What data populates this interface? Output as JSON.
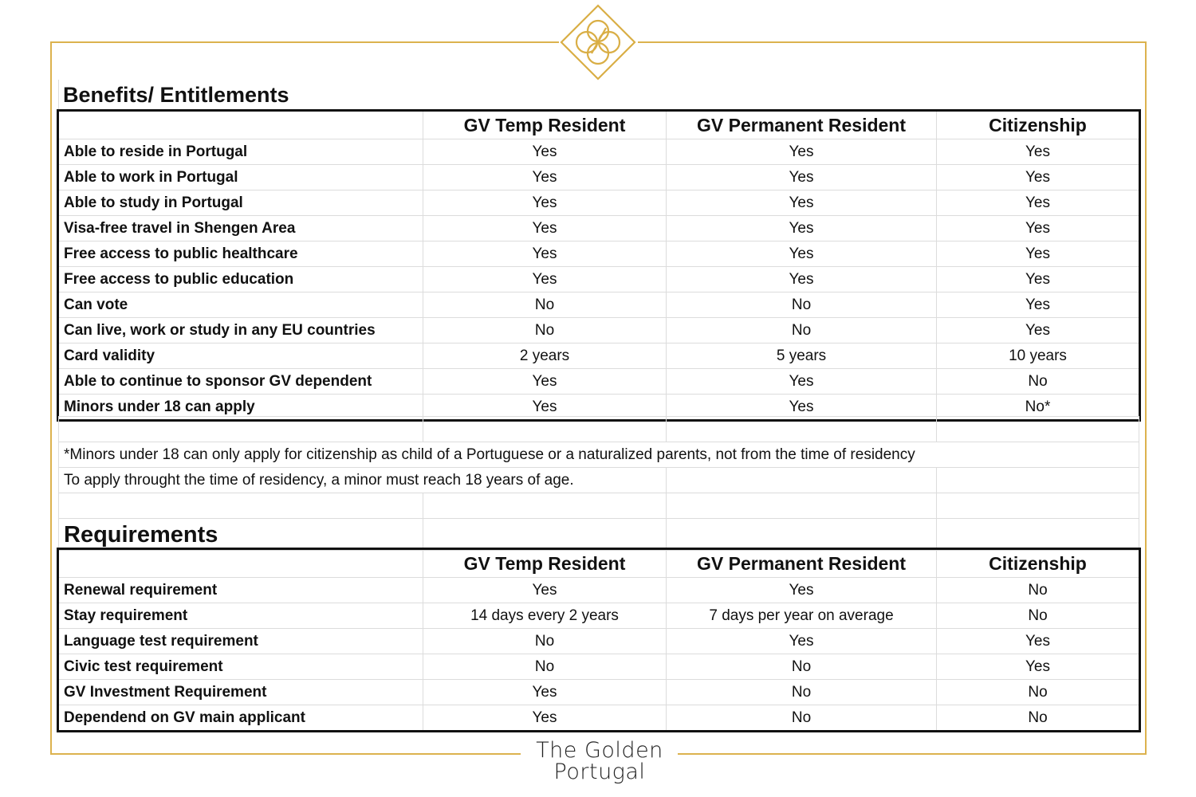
{
  "brand": {
    "line1": "The Golden",
    "line2": "Portugal",
    "accent": "#dcb24e"
  },
  "benefits": {
    "title": "Benefits/ Entitlements",
    "columns": [
      "",
      "GV Temp Resident",
      "GV Permanent Resident",
      "Citizenship"
    ],
    "rows": [
      [
        "Able to reside in Portugal",
        "Yes",
        "Yes",
        "Yes"
      ],
      [
        "Able to work in Portugal",
        "Yes",
        "Yes",
        "Yes"
      ],
      [
        "Able to study in Portugal",
        "Yes",
        "Yes",
        "Yes"
      ],
      [
        "Visa-free travel in Shengen Area",
        "Yes",
        "Yes",
        "Yes"
      ],
      [
        "Free access to public healthcare",
        "Yes",
        "Yes",
        "Yes"
      ],
      [
        "Free access to public education",
        "Yes",
        "Yes",
        "Yes"
      ],
      [
        "Can vote",
        "No",
        "No",
        "Yes"
      ],
      [
        "Can live, work or study in any EU countries",
        "No",
        "No",
        "Yes"
      ],
      [
        "Card validity",
        "2 years",
        "5 years",
        "10 years"
      ],
      [
        "Able to continue to sponsor GV dependent",
        "Yes",
        "Yes",
        "No"
      ],
      [
        "Minors under 18 can apply",
        "Yes",
        "Yes",
        "No*"
      ]
    ]
  },
  "notes": [
    "*Minors under 18 can only apply for citizenship as child of a Portuguese or a naturalized parents, not from the time of residency",
    "To apply throught the time of residency, a minor must reach 18 years of age."
  ],
  "requirements": {
    "title": "Requirements",
    "columns": [
      "",
      "GV Temp Resident",
      "GV Permanent Resident",
      "Citizenship"
    ],
    "rows": [
      [
        "Renewal requirement",
        "Yes",
        "Yes",
        "No"
      ],
      [
        "Stay requirement",
        "14 days every 2 years",
        "7 days per year on average",
        "No"
      ],
      [
        "Language test requirement",
        "No",
        "Yes",
        "Yes"
      ],
      [
        "Civic test requirement",
        "No",
        "No",
        "Yes"
      ],
      [
        "GV Investment Requirement",
        "Yes",
        "No",
        "No"
      ],
      [
        "Dependend on GV main applicant",
        "Yes",
        "No",
        "No"
      ]
    ]
  }
}
